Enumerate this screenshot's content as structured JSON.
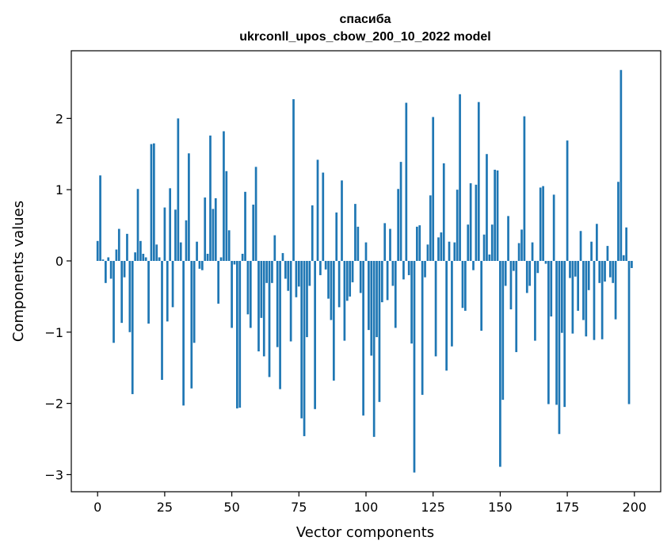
{
  "chart_data": {
    "type": "bar",
    "title": "спасиба",
    "subtitle": "ukrconll_upos_cbow_200_10_2022 model",
    "xlabel": "Vector components",
    "ylabel": "Components values",
    "xlim": [
      -9.8,
      209.8
    ],
    "ylim": [
      -3.24,
      2.95
    ],
    "xticks": [
      0,
      25,
      50,
      75,
      100,
      125,
      150,
      175,
      200
    ],
    "yticks": [
      -3,
      -2,
      -1,
      0,
      1,
      2
    ],
    "bar_color": "#1f77b4",
    "grid": false,
    "x": [
      0,
      1,
      2,
      3,
      4,
      5,
      6,
      7,
      8,
      9,
      10,
      11,
      12,
      13,
      14,
      15,
      16,
      17,
      18,
      19,
      20,
      21,
      22,
      23,
      24,
      25,
      26,
      27,
      28,
      29,
      30,
      31,
      32,
      33,
      34,
      35,
      36,
      37,
      38,
      39,
      40,
      41,
      42,
      43,
      44,
      45,
      46,
      47,
      48,
      49,
      50,
      51,
      52,
      53,
      54,
      55,
      56,
      57,
      58,
      59,
      60,
      61,
      62,
      63,
      64,
      65,
      66,
      67,
      68,
      69,
      70,
      71,
      72,
      73,
      74,
      75,
      76,
      77,
      78,
      79,
      80,
      81,
      82,
      83,
      84,
      85,
      86,
      87,
      88,
      89,
      90,
      91,
      92,
      93,
      94,
      95,
      96,
      97,
      98,
      99,
      100,
      101,
      102,
      103,
      104,
      105,
      106,
      107,
      108,
      109,
      110,
      111,
      112,
      113,
      114,
      115,
      116,
      117,
      118,
      119,
      120,
      121,
      122,
      123,
      124,
      125,
      126,
      127,
      128,
      129,
      130,
      131,
      132,
      133,
      134,
      135,
      136,
      137,
      138,
      139,
      140,
      141,
      142,
      143,
      144,
      145,
      146,
      147,
      148,
      149,
      150,
      151,
      152,
      153,
      154,
      155,
      156,
      157,
      158,
      159,
      160,
      161,
      162,
      163,
      164,
      165,
      166,
      167,
      168,
      169,
      170,
      171,
      172,
      173,
      174,
      175,
      176,
      177,
      178,
      179,
      180,
      181,
      182,
      183,
      184,
      185,
      186,
      187,
      188,
      189,
      190,
      191,
      192,
      193,
      194,
      195,
      196,
      197,
      198,
      199
    ],
    "values": [
      0.28,
      1.2,
      0.02,
      -0.31,
      0.05,
      -0.25,
      -1.15,
      0.16,
      0.45,
      -0.87,
      -0.23,
      0.38,
      -1.0,
      -1.87,
      0.12,
      1.01,
      0.28,
      0.1,
      0.05,
      -0.88,
      1.64,
      1.65,
      0.23,
      0.05,
      -1.67,
      0.75,
      -0.85,
      1.02,
      -0.65,
      0.72,
      2.0,
      0.26,
      -2.03,
      0.57,
      1.51,
      -1.79,
      -1.15,
      0.27,
      -0.11,
      -0.13,
      0.89,
      0.1,
      1.76,
      0.73,
      0.88,
      -0.6,
      0.05,
      1.82,
      1.26,
      0.43,
      -0.94,
      -0.05,
      -2.07,
      -2.06,
      0.1,
      0.97,
      -0.75,
      -0.94,
      0.79,
      1.32,
      -1.27,
      -0.8,
      -1.34,
      -0.31,
      -1.63,
      -0.31,
      0.36,
      -1.21,
      -1.8,
      0.11,
      -0.25,
      -0.42,
      -1.13,
      2.27,
      -0.51,
      -0.36,
      -2.21,
      -2.46,
      -1.07,
      -0.35,
      0.78,
      -2.08,
      1.42,
      -0.2,
      1.24,
      -0.12,
      -0.53,
      -0.83,
      -1.68,
      0.68,
      -0.65,
      1.13,
      -1.12,
      -0.56,
      -0.5,
      -0.3,
      0.8,
      0.48,
      -0.45,
      -2.17,
      0.26,
      -0.97,
      -1.33,
      -2.47,
      -1.07,
      -1.98,
      -0.58,
      0.53,
      -0.55,
      0.45,
      -0.35,
      -0.94,
      1.01,
      1.39,
      -0.26,
      2.22,
      -0.2,
      -1.16,
      -2.97,
      0.48,
      0.5,
      -1.88,
      -0.23,
      0.23,
      0.92,
      2.02,
      -1.34,
      0.33,
      0.4,
      1.37,
      -1.54,
      0.27,
      -1.2,
      0.26,
      1.0,
      2.34,
      -0.66,
      -0.7,
      0.51,
      1.09,
      -0.13,
      1.07,
      2.23,
      -0.98,
      0.37,
      1.5,
      0.09,
      0.51,
      1.28,
      1.27,
      -2.89,
      -1.95,
      -0.35,
      0.63,
      -0.68,
      -0.14,
      -1.28,
      0.25,
      0.44,
      2.03,
      -0.45,
      -0.35,
      0.26,
      -1.12,
      -0.17,
      1.03,
      1.05,
      -0.04,
      -2.01,
      -0.78,
      0.93,
      -2.02,
      -2.43,
      -1.01,
      -2.05,
      1.69,
      -0.24,
      -1.02,
      -0.22,
      -0.7,
      0.42,
      -0.83,
      -1.06,
      -0.41,
      0.27,
      -1.11,
      0.52,
      -0.31,
      -1.1,
      -0.29,
      0.21,
      -0.23,
      -0.31,
      -0.82,
      1.11,
      2.68,
      0.08,
      0.47,
      -2.01,
      -0.1
    ]
  }
}
